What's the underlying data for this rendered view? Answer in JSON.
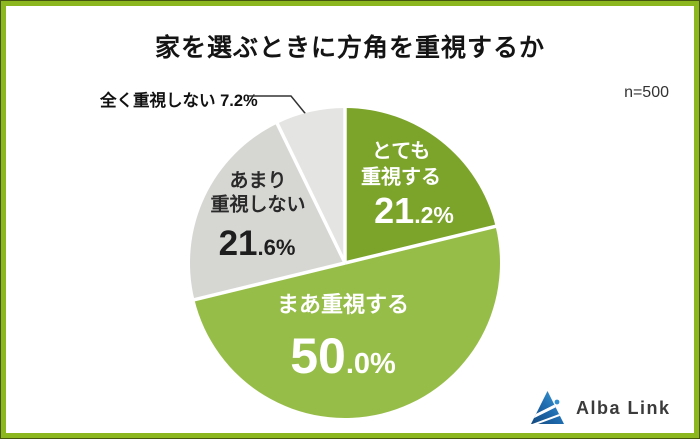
{
  "header": {
    "title": "家を選ぶときに方角を重視するか",
    "sample_size": "n=500"
  },
  "chart_data": {
    "type": "pie",
    "title": "家を選ぶときに方角を重視するか",
    "sample_size": "n=500",
    "start_angle_deg": 0,
    "direction": "clockwise",
    "separator_color": "#ffffff",
    "slices": [
      {
        "label": "とても重視する",
        "value": 21.2,
        "display": "21.2%",
        "color": "#7ca42b",
        "text_color": "#ffffff"
      },
      {
        "label": "まあ重視する",
        "value": 50.0,
        "display": "50.0%",
        "color": "#97bd49",
        "text_color": "#ffffff"
      },
      {
        "label": "あまり重視しない",
        "value": 21.6,
        "display": "21.6%",
        "color": "#d6d6d3",
        "text_color": "#1e1e1e"
      },
      {
        "label": "全く重視しない",
        "value": 7.2,
        "display": "7.2%",
        "color": "#e4e4e2",
        "text_color": "#111111"
      }
    ]
  },
  "frame": {
    "border_color": "#8cb71f"
  },
  "logo": {
    "text": "Alba Link"
  }
}
